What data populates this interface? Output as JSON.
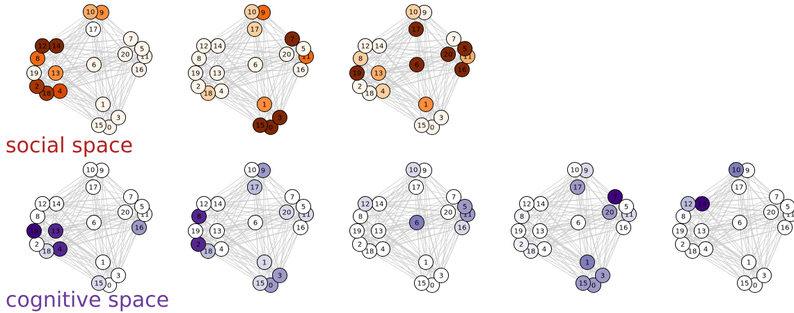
{
  "labels": {
    "social": "social space",
    "cognitive": "cognitive space"
  },
  "colors": {
    "social_label": "#b22222",
    "cognitive_label": "#6a3d9a",
    "edge": "#cccccc",
    "node_outline": "#000000",
    "oranges": [
      "#ffffff",
      "#fff5eb",
      "#fdd0a2",
      "#fdae6b",
      "#fd8d3c",
      "#f16913",
      "#d94801",
      "#a63603",
      "#7f2704"
    ],
    "purples": [
      "#ffffff",
      "#f2f0f7",
      "#dadaeb",
      "#bcbddc",
      "#9e9ac8",
      "#807dba",
      "#6a51a3",
      "#54278f",
      "#3f007d"
    ]
  },
  "network": {
    "node_ids": [
      0,
      1,
      2,
      3,
      4,
      5,
      6,
      7,
      8,
      9,
      10,
      11,
      12,
      13,
      14,
      15,
      16,
      17,
      18,
      19,
      20
    ]
  },
  "social_graphs": [
    {
      "id": "s1",
      "shades": {
        "0": 1,
        "1": 1,
        "2": 7,
        "3": 1,
        "4": 6,
        "5": 1,
        "6": 1,
        "7": 1,
        "8": 5,
        "9": 4,
        "10": 3,
        "11": 1,
        "12": 8,
        "13": 4,
        "14": 8,
        "15": 1,
        "16": 1,
        "17": 0,
        "18": 7,
        "19": 1,
        "20": 1
      }
    },
    {
      "id": "s2",
      "shades": {
        "0": 8,
        "1": 4,
        "2": 1,
        "3": 8,
        "4": 1,
        "5": 1,
        "6": 1,
        "7": 8,
        "8": 1,
        "9": 5,
        "10": 2,
        "11": 5,
        "12": 1,
        "13": 1,
        "14": 1,
        "15": 8,
        "16": 1,
        "17": 2,
        "18": 2,
        "19": 1,
        "20": 1
      }
    },
    {
      "id": "s3",
      "shades": {
        "0": 1,
        "1": 4,
        "2": 1,
        "3": 1,
        "4": 2,
        "5": 8,
        "6": 8,
        "7": 1,
        "8": 2,
        "9": 1,
        "10": 2,
        "11": 3,
        "12": 1,
        "13": 3,
        "14": 1,
        "15": 1,
        "16": 8,
        "17": 8,
        "18": 1,
        "19": 8,
        "20": 8
      }
    }
  ],
  "cognitive_graphs": [
    {
      "id": "c1",
      "shades": {
        "0": 0,
        "1": 0,
        "2": 0,
        "3": 0,
        "4": 7,
        "5": 0,
        "6": 0,
        "7": 0,
        "8": 0,
        "9": 0,
        "10": 0,
        "11": 0,
        "12": 0,
        "13": 7,
        "14": 0,
        "15": 2,
        "16": 4,
        "17": 0,
        "18": 2,
        "19": 8,
        "20": 0
      }
    },
    {
      "id": "c2",
      "shades": {
        "0": 4,
        "1": 2,
        "2": 7,
        "3": 4,
        "4": 0,
        "5": 0,
        "6": 0,
        "7": 0,
        "8": 7,
        "9": 4,
        "10": 0,
        "11": 2,
        "12": 0,
        "13": 0,
        "14": 0,
        "15": 2,
        "16": 0,
        "17": 3,
        "18": 3,
        "19": 0,
        "20": 2
      }
    },
    {
      "id": "c3",
      "shades": {
        "0": 0,
        "1": 0,
        "2": 0,
        "3": 0,
        "4": 0,
        "5": 4,
        "6": 5,
        "7": 0,
        "8": 0,
        "9": 0,
        "10": 2,
        "11": 4,
        "12": 2,
        "13": 0,
        "14": 0,
        "15": 0,
        "16": 2,
        "17": 0,
        "18": 0,
        "19": 0,
        "20": 0
      }
    },
    {
      "id": "c4",
      "shades": {
        "0": 4,
        "1": 5,
        "2": 1,
        "3": 4,
        "4": 0,
        "5": 0,
        "6": 0,
        "7": 8,
        "8": 1,
        "9": 2,
        "10": 0,
        "11": 2,
        "12": 0,
        "13": 0,
        "14": 0,
        "15": 4,
        "16": 0,
        "17": 4,
        "18": 1,
        "19": 0,
        "20": 4
      }
    },
    {
      "id": "c5",
      "shades": {
        "0": 0,
        "1": 0,
        "2": 0,
        "3": 0,
        "4": 0,
        "5": 0,
        "6": 0,
        "7": 0,
        "8": 0,
        "9": 0,
        "10": 5,
        "11": 0,
        "12": 3,
        "13": 0,
        "14": 8,
        "15": 0,
        "16": 0,
        "17": 0,
        "18": 0,
        "19": 0,
        "20": 0
      }
    }
  ]
}
